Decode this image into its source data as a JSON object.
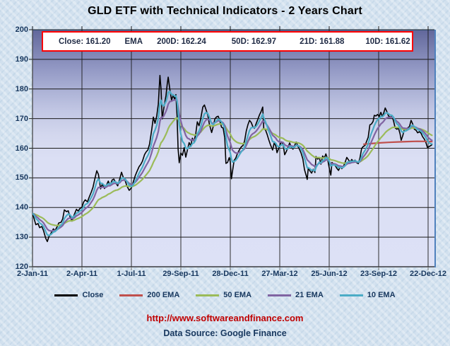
{
  "header": {
    "title": "GLD ETF with Technical Indicators - 2 Years Chart"
  },
  "info_box": {
    "close": "Close: 161.20",
    "ema": "EMA",
    "d200": "200D: 162.24",
    "d50": "50D: 162.97",
    "d21": "21D: 161.88",
    "d10": "10D: 161.62",
    "border_color": "#FF0000"
  },
  "legend": {
    "items": [
      {
        "label": "Close",
        "color": "#000000"
      },
      {
        "label": "200 EMA",
        "color": "#C0504D"
      },
      {
        "label": "50 EMA",
        "color": "#9BBB59"
      },
      {
        "label": "21 EMA",
        "color": "#8064A2"
      },
      {
        "label": "10 EMA",
        "color": "#4BACC6"
      }
    ]
  },
  "footer": {
    "url": "http://www.softwareandfinance.com",
    "source": "Data Source: Google Finance",
    "url_color": "#C00000",
    "source_color": "#17375E"
  },
  "chart_data": {
    "type": "line",
    "title": "GLD ETF with Technical Indicators - 2 Years Chart",
    "grid": true,
    "legend_position": "bottom",
    "y_axis": {
      "min": 120,
      "max": 200,
      "step": 10,
      "ticks": [
        200,
        190,
        180,
        170,
        160,
        150,
        140,
        130,
        120
      ]
    },
    "x_axis": {
      "labels": [
        "2-Jan-11",
        "2-Apr-11",
        "1-Jul-11",
        "29-Sep-11",
        "28-Dec-11",
        "27-Mar-12",
        "25-Jun-12",
        "23-Sep-12",
        "22-Dec-12"
      ],
      "tick_days": [
        0,
        90,
        180,
        270,
        360,
        450,
        540,
        630,
        720
      ],
      "span_days": 730
    },
    "ema_calendar_factor": 1.45,
    "series": [
      {
        "name": "Close",
        "color": "#000000",
        "width": 1.6,
        "points": [
          [
            0,
            138.0
          ],
          [
            3,
            136.2
          ],
          [
            6,
            134.2
          ],
          [
            10,
            134.6
          ],
          [
            13,
            133.2
          ],
          [
            17,
            133.6
          ],
          [
            20,
            132.2
          ],
          [
            24,
            129.6
          ],
          [
            27,
            128.5
          ],
          [
            30,
            130.2
          ],
          [
            34,
            131.4
          ],
          [
            38,
            132.8
          ],
          [
            41,
            132.2
          ],
          [
            45,
            133.6
          ],
          [
            48,
            134.8
          ],
          [
            52,
            135.0
          ],
          [
            55,
            136.2
          ],
          [
            58,
            139.2
          ],
          [
            62,
            138.6
          ],
          [
            65,
            138.9
          ],
          [
            68,
            137.0
          ],
          [
            72,
            135.4
          ],
          [
            76,
            137.6
          ],
          [
            80,
            139.4
          ],
          [
            83,
            138.8
          ],
          [
            86,
            139.6
          ],
          [
            90,
            140.1
          ],
          [
            93,
            141.8
          ],
          [
            96,
            142.6
          ],
          [
            100,
            141.9
          ],
          [
            103,
            143.4
          ],
          [
            107,
            145.2
          ],
          [
            110,
            146.8
          ],
          [
            113,
            149.3
          ],
          [
            117,
            152.4
          ],
          [
            120,
            151.2
          ],
          [
            124,
            146.3
          ],
          [
            127,
            147.9
          ],
          [
            131,
            146.4
          ],
          [
            134,
            147.3
          ],
          [
            138,
            148.9
          ],
          [
            141,
            147.4
          ],
          [
            145,
            149.3
          ],
          [
            148,
            149.6
          ],
          [
            152,
            148.2
          ],
          [
            155,
            147.3
          ],
          [
            159,
            149.8
          ],
          [
            162,
            151.9
          ],
          [
            165,
            150.3
          ],
          [
            169,
            148.9
          ],
          [
            172,
            147.2
          ],
          [
            176,
            145.8
          ],
          [
            180,
            146.6
          ],
          [
            183,
            148.3
          ],
          [
            187,
            150.7
          ],
          [
            190,
            152.1
          ],
          [
            194,
            153.8
          ],
          [
            197,
            154.5
          ],
          [
            200,
            155.6
          ],
          [
            204,
            157.9
          ],
          [
            207,
            158.8
          ],
          [
            210,
            159.4
          ],
          [
            213,
            161.4
          ],
          [
            217,
            166.3
          ],
          [
            220,
            170.5
          ],
          [
            223,
            168.4
          ],
          [
            226,
            170.8
          ],
          [
            229,
            174.9
          ],
          [
            232,
            184.6
          ],
          [
            234,
            179.8
          ],
          [
            236,
            169.9
          ],
          [
            239,
            173.6
          ],
          [
            243,
            177.8
          ],
          [
            245,
            181.4
          ],
          [
            247,
            184.0
          ],
          [
            250,
            179.9
          ],
          [
            253,
            176.3
          ],
          [
            256,
            177.8
          ],
          [
            259,
            176.5
          ],
          [
            261,
            178.1
          ],
          [
            263,
            171.1
          ],
          [
            265,
            159.8
          ],
          [
            267,
            155.1
          ],
          [
            270,
            158.4
          ],
          [
            273,
            157.6
          ],
          [
            276,
            160.2
          ],
          [
            279,
            157.0
          ],
          [
            282,
            159.4
          ],
          [
            285,
            161.9
          ],
          [
            288,
            160.8
          ],
          [
            291,
            163.4
          ],
          [
            294,
            162.4
          ],
          [
            297,
            164.7
          ],
          [
            300,
            168.9
          ],
          [
            303,
            167.6
          ],
          [
            306,
            169.8
          ],
          [
            310,
            173.9
          ],
          [
            313,
            174.6
          ],
          [
            316,
            172.9
          ],
          [
            319,
            171.2
          ],
          [
            322,
            168.1
          ],
          [
            326,
            165.3
          ],
          [
            329,
            167.4
          ],
          [
            332,
            169.9
          ],
          [
            335,
            170.6
          ],
          [
            338,
            170.8
          ],
          [
            341,
            169.2
          ],
          [
            344,
            167.1
          ],
          [
            347,
            166.8
          ],
          [
            350,
            163.4
          ],
          [
            352,
            154.9
          ],
          [
            355,
            155.2
          ],
          [
            358,
            156.8
          ],
          [
            360,
            155.4
          ],
          [
            362,
            149.7
          ],
          [
            364,
            152.2
          ],
          [
            367,
            155.9
          ],
          [
            370,
            156.7
          ],
          [
            373,
            158.2
          ],
          [
            377,
            159.6
          ],
          [
            380,
            160.5
          ],
          [
            383,
            160.9
          ],
          [
            386,
            162.4
          ],
          [
            389,
            165.8
          ],
          [
            392,
            167.9
          ],
          [
            395,
            169.4
          ],
          [
            398,
            168.7
          ],
          [
            401,
            167.3
          ],
          [
            404,
            166.7
          ],
          [
            407,
            168.3
          ],
          [
            410,
            169.7
          ],
          [
            413,
            171.2
          ],
          [
            416,
            172.4
          ],
          [
            419,
            173.9
          ],
          [
            421,
            166.5
          ],
          [
            424,
            166.2
          ],
          [
            427,
            164.7
          ],
          [
            430,
            162.9
          ],
          [
            433,
            161.2
          ],
          [
            437,
            159.4
          ],
          [
            440,
            161.9
          ],
          [
            443,
            160.6
          ],
          [
            445,
            158.5
          ],
          [
            448,
            159.9
          ],
          [
            450,
            160.9
          ],
          [
            453,
            162.2
          ],
          [
            456,
            161.4
          ],
          [
            459,
            157.8
          ],
          [
            462,
            158.9
          ],
          [
            465,
            160.3
          ],
          [
            468,
            161.8
          ],
          [
            471,
            160.4
          ],
          [
            474,
            159.7
          ],
          [
            477,
            160.9
          ],
          [
            480,
            162.1
          ],
          [
            483,
            160.7
          ],
          [
            486,
            159.6
          ],
          [
            489,
            158.3
          ],
          [
            492,
            156.4
          ],
          [
            495,
            152.8
          ],
          [
            498,
            150.9
          ],
          [
            500,
            149.5
          ],
          [
            502,
            153.4
          ],
          [
            505,
            152.3
          ],
          [
            508,
            151.6
          ],
          [
            511,
            152.9
          ],
          [
            514,
            151.8
          ],
          [
            516,
            157.2
          ],
          [
            519,
            156.3
          ],
          [
            522,
            156.9
          ],
          [
            525,
            154.6
          ],
          [
            528,
            157.4
          ],
          [
            531,
            156.6
          ],
          [
            534,
            158.1
          ],
          [
            537,
            156.4
          ],
          [
            540,
            153.4
          ],
          [
            543,
            150.9
          ],
          [
            545,
            155.2
          ],
          [
            548,
            154.7
          ],
          [
            551,
            154.1
          ],
          [
            554,
            153.2
          ],
          [
            557,
            152.5
          ],
          [
            560,
            153.8
          ],
          [
            563,
            153.1
          ],
          [
            566,
            153.9
          ],
          [
            569,
            155.3
          ],
          [
            572,
            156.9
          ],
          [
            575,
            156.1
          ],
          [
            578,
            155.3
          ],
          [
            581,
            156.2
          ],
          [
            584,
            155.6
          ],
          [
            587,
            156.0
          ],
          [
            590,
            155.1
          ],
          [
            593,
            154.8
          ],
          [
            596,
            156.8
          ],
          [
            599,
            159.9
          ],
          [
            602,
            160.6
          ],
          [
            605,
            160.9
          ],
          [
            608,
            162.3
          ],
          [
            611,
            163.7
          ],
          [
            614,
            167.9
          ],
          [
            617,
            168.2
          ],
          [
            620,
            169.1
          ],
          [
            622,
            171.1
          ],
          [
            625,
            170.9
          ],
          [
            628,
            171.4
          ],
          [
            631,
            170.7
          ],
          [
            634,
            172.1
          ],
          [
            637,
            170.6
          ],
          [
            640,
            172.4
          ],
          [
            642,
            173.6
          ],
          [
            645,
            172.3
          ],
          [
            648,
            170.9
          ],
          [
            651,
            170.4
          ],
          [
            654,
            170.9
          ],
          [
            657,
            169.3
          ],
          [
            660,
            166.9
          ],
          [
            663,
            166.4
          ],
          [
            666,
            166.8
          ],
          [
            669,
            164.9
          ],
          [
            671,
            162.7
          ],
          [
            674,
            164.3
          ],
          [
            677,
            166.6
          ],
          [
            680,
            166.2
          ],
          [
            683,
            166.9
          ],
          [
            686,
            167.3
          ],
          [
            689,
            169.4
          ],
          [
            692,
            168.2
          ],
          [
            695,
            166.4
          ],
          [
            698,
            166.1
          ],
          [
            701,
            165.2
          ],
          [
            704,
            165.6
          ],
          [
            707,
            165.1
          ],
          [
            710,
            163.9
          ],
          [
            713,
            163.1
          ],
          [
            716,
            161.9
          ],
          [
            719,
            160.2
          ],
          [
            722,
            160.6
          ],
          [
            725,
            160.9
          ],
          [
            727,
            161.2
          ]
        ]
      },
      {
        "name": "200 EMA",
        "color": "#C0504D",
        "width": 2.2,
        "final_value": 162.24,
        "points": [
          [
            603,
            161.35
          ],
          [
            615,
            161.55
          ],
          [
            630,
            161.78
          ],
          [
            648,
            161.98
          ],
          [
            665,
            162.12
          ],
          [
            682,
            162.25
          ],
          [
            700,
            162.34
          ],
          [
            714,
            162.32
          ],
          [
            727,
            162.24
          ]
        ]
      },
      {
        "name": "50 EMA",
        "color": "#9BBB59",
        "width": 2.2,
        "ema_of": "Close",
        "period_days": 50,
        "final_value": 162.97
      },
      {
        "name": "21 EMA",
        "color": "#8064A2",
        "width": 2.2,
        "ema_of": "Close",
        "period_days": 21,
        "final_value": 161.88
      },
      {
        "name": "10 EMA",
        "color": "#4BACC6",
        "width": 2.2,
        "ema_of": "Close",
        "period_days": 10,
        "final_value": 161.62
      }
    ]
  }
}
